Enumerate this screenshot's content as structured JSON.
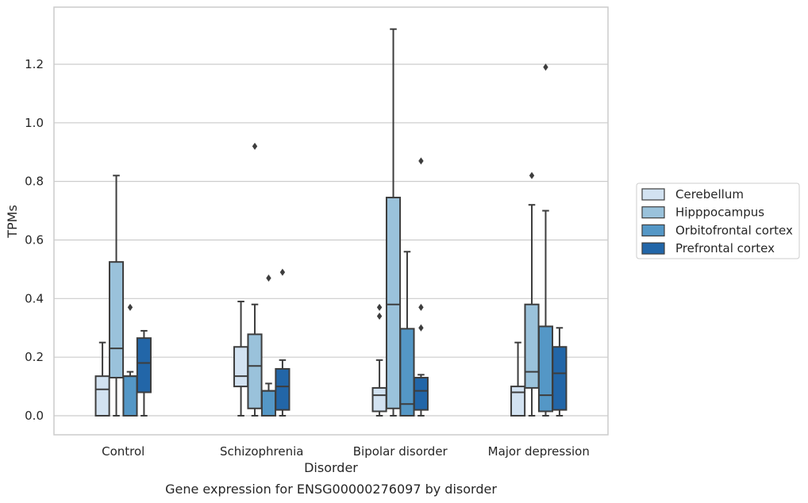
{
  "chart_data": {
    "type": "box",
    "caption": "Gene expression for ENSG00000276097 by disorder",
    "xlabel": "Disorder",
    "ylabel": "TPMs",
    "ylim": [
      -0.065,
      1.395
    ],
    "yticks": [
      0.0,
      0.2,
      0.4,
      0.6,
      0.8,
      1.0,
      1.2
    ],
    "ytick_labels": [
      "0.0",
      "0.2",
      "0.4",
      "0.6",
      "0.8",
      "1.0",
      "1.2"
    ],
    "grid": "horizontal",
    "legend_position": "right, outside plot",
    "categories": [
      "Control",
      "Schizophrenia",
      "Bipolar disorder",
      "Major depression"
    ],
    "series": [
      {
        "name": "Cerebellum",
        "color": "#d2e2f1",
        "boxes": [
          {
            "whislo": 0.0,
            "q1": 0.0,
            "med": 0.09,
            "q3": 0.135,
            "whishi": 0.25,
            "fliers": []
          },
          {
            "whislo": 0.0,
            "q1": 0.1,
            "med": 0.135,
            "q3": 0.235,
            "whishi": 0.39,
            "fliers": []
          },
          {
            "whislo": 0.0,
            "q1": 0.015,
            "med": 0.07,
            "q3": 0.095,
            "whishi": 0.19,
            "fliers": [
              0.34,
              0.37
            ]
          },
          {
            "whislo": 0.0,
            "q1": 0.0,
            "med": 0.08,
            "q3": 0.1,
            "whishi": 0.25,
            "fliers": []
          }
        ]
      },
      {
        "name": "Hipppocampus",
        "color": "#9ac2db",
        "boxes": [
          {
            "whislo": 0.0,
            "q1": 0.13,
            "med": 0.23,
            "q3": 0.525,
            "whishi": 0.82,
            "fliers": []
          },
          {
            "whislo": 0.0,
            "q1": 0.025,
            "med": 0.17,
            "q3": 0.278,
            "whishi": 0.38,
            "fliers": [
              0.92
            ]
          },
          {
            "whislo": 0.0,
            "q1": 0.025,
            "med": 0.38,
            "q3": 0.745,
            "whishi": 1.32,
            "fliers": []
          },
          {
            "whislo": 0.0,
            "q1": 0.095,
            "med": 0.15,
            "q3": 0.38,
            "whishi": 0.72,
            "fliers": [
              0.82
            ]
          }
        ]
      },
      {
        "name": "Orbitofrontal cortex",
        "color": "#5497c6",
        "boxes": [
          {
            "whislo": 0.0,
            "q1": 0.0,
            "med": 0.135,
            "q3": 0.135,
            "whishi": 0.15,
            "fliers": [
              0.37
            ]
          },
          {
            "whislo": 0.0,
            "q1": 0.0,
            "med": 0.085,
            "q3": 0.085,
            "whishi": 0.11,
            "fliers": [
              0.47
            ]
          },
          {
            "whislo": 0.0,
            "q1": 0.0,
            "med": 0.04,
            "q3": 0.297,
            "whishi": 0.56,
            "fliers": []
          },
          {
            "whislo": 0.0,
            "q1": 0.015,
            "med": 0.07,
            "q3": 0.305,
            "whishi": 0.7,
            "fliers": [
              1.19
            ]
          }
        ]
      },
      {
        "name": "Prefrontal cortex",
        "color": "#2266a8",
        "boxes": [
          {
            "whislo": 0.0,
            "q1": 0.08,
            "med": 0.18,
            "q3": 0.265,
            "whishi": 0.29,
            "fliers": []
          },
          {
            "whislo": 0.0,
            "q1": 0.02,
            "med": 0.1,
            "q3": 0.16,
            "whishi": 0.19,
            "fliers": [
              0.49
            ]
          },
          {
            "whislo": 0.0,
            "q1": 0.02,
            "med": 0.085,
            "q3": 0.13,
            "whishi": 0.14,
            "fliers": [
              0.3,
              0.37,
              0.87
            ]
          },
          {
            "whislo": 0.0,
            "q1": 0.02,
            "med": 0.145,
            "q3": 0.235,
            "whishi": 0.3,
            "fliers": []
          }
        ]
      }
    ]
  }
}
